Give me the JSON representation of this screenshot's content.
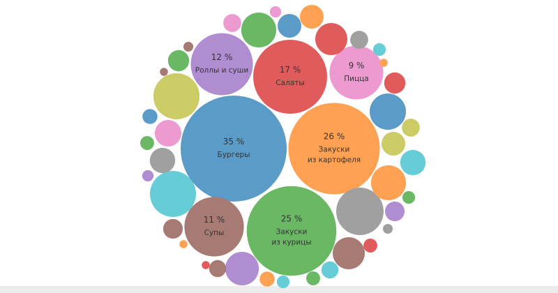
{
  "chart_data": {
    "type": "packed-bubble",
    "categories": [
      "Бургеры",
      "Закуски\nиз картофеля",
      "Закуски\nиз курицы",
      "Салаты",
      "Роллы и суши",
      "Супы",
      "Пицца",
      null,
      null,
      null,
      null,
      null,
      null,
      null,
      null,
      null,
      null,
      null,
      null,
      null,
      null,
      null,
      null,
      null,
      null,
      null,
      null,
      null,
      null,
      null,
      null,
      null,
      null,
      null,
      null,
      null,
      null,
      null,
      null,
      null,
      null,
      null,
      null,
      null,
      null,
      null,
      null
    ],
    "values": [
      35,
      26,
      25,
      17,
      12,
      11,
      9,
      6.6,
      6.6,
      7,
      4.1,
      3.8,
      3.2,
      3.5,
      3.8,
      3.2,
      1.75,
      1.75,
      1.0,
      2.2,
      2.0,
      2.0,
      1.75,
      1.4,
      1.0,
      1.2,
      1.0,
      1.4,
      1.2,
      0.9,
      0.6,
      0.6,
      0.5,
      0.7,
      0.9,
      0.7,
      0.6,
      0.4,
      0.3,
      0.5,
      0.4,
      0.5,
      0.3,
      0.2,
      0.2,
      0.2,
      0.2
    ],
    "value_labels": [
      "35 %",
      "26 %",
      "25 %",
      "17 %",
      "12 %",
      "11 %",
      "9 %",
      null,
      null,
      null,
      null,
      null,
      null,
      null,
      null,
      null,
      null,
      null,
      null,
      null,
      null,
      null,
      null,
      null,
      null,
      null,
      null,
      null,
      null,
      null,
      null,
      null,
      null,
      null,
      null,
      null,
      null,
      null,
      null,
      null,
      null,
      null,
      null,
      null,
      null,
      null,
      null
    ],
    "colors": [
      "#5b9bc8",
      "#ffa152",
      "#6ab764",
      "#e05c5c",
      "#b08cd0",
      "#a87a74",
      "#ec9ad0",
      "#cccc66",
      "#66ccd6",
      "#a0a0a0",
      "#5b9bc8",
      "#ffa152",
      "#a87a74",
      "#b08cd0",
      "#6ab764",
      "#e05c5c",
      "#ffa152",
      "#5b9bc8",
      "#ec9ad0",
      "#ec9ad0",
      "#a0a0a0",
      "#66ccd6",
      "#cccc66",
      "#e05c5c",
      "#cccc66",
      "#b08cd0",
      "#a0a0a0",
      "#6ab764",
      "#a87a74",
      "#66ccd6",
      "#e05c5c",
      "#6ab764",
      "#66ccd6",
      "#ffa152",
      "#a87a74",
      "#5b9bc8",
      "#6ab764",
      "#b08cd0",
      "#a87a74",
      "#66ccd6",
      "#ec9ad0",
      "#6ab764",
      "#a0a0a0",
      "#e05c5c",
      "#ffa152",
      "#a87a74",
      "#ffa152"
    ]
  }
}
